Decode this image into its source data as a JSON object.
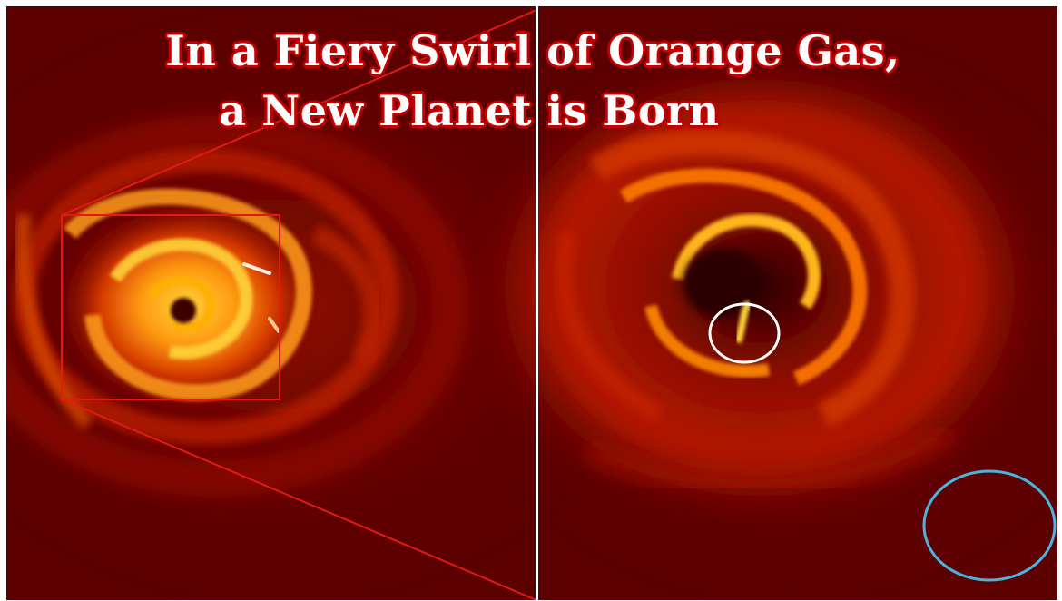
{
  "headline": {
    "line1": "In a Fiery Swirl of Orange Gas,",
    "line2": "a New Planet is Born"
  },
  "palette": {
    "background_dark": "#5a0000",
    "gas_red": "#b31200",
    "gas_orange": "#f06a00",
    "gas_yellow": "#ffc400",
    "divider_white": "#ffffff",
    "zoom_box_red": "#e21a14",
    "planet_marker_white": "#ffffff",
    "reference_marker_blue": "#4cb3dc"
  }
}
